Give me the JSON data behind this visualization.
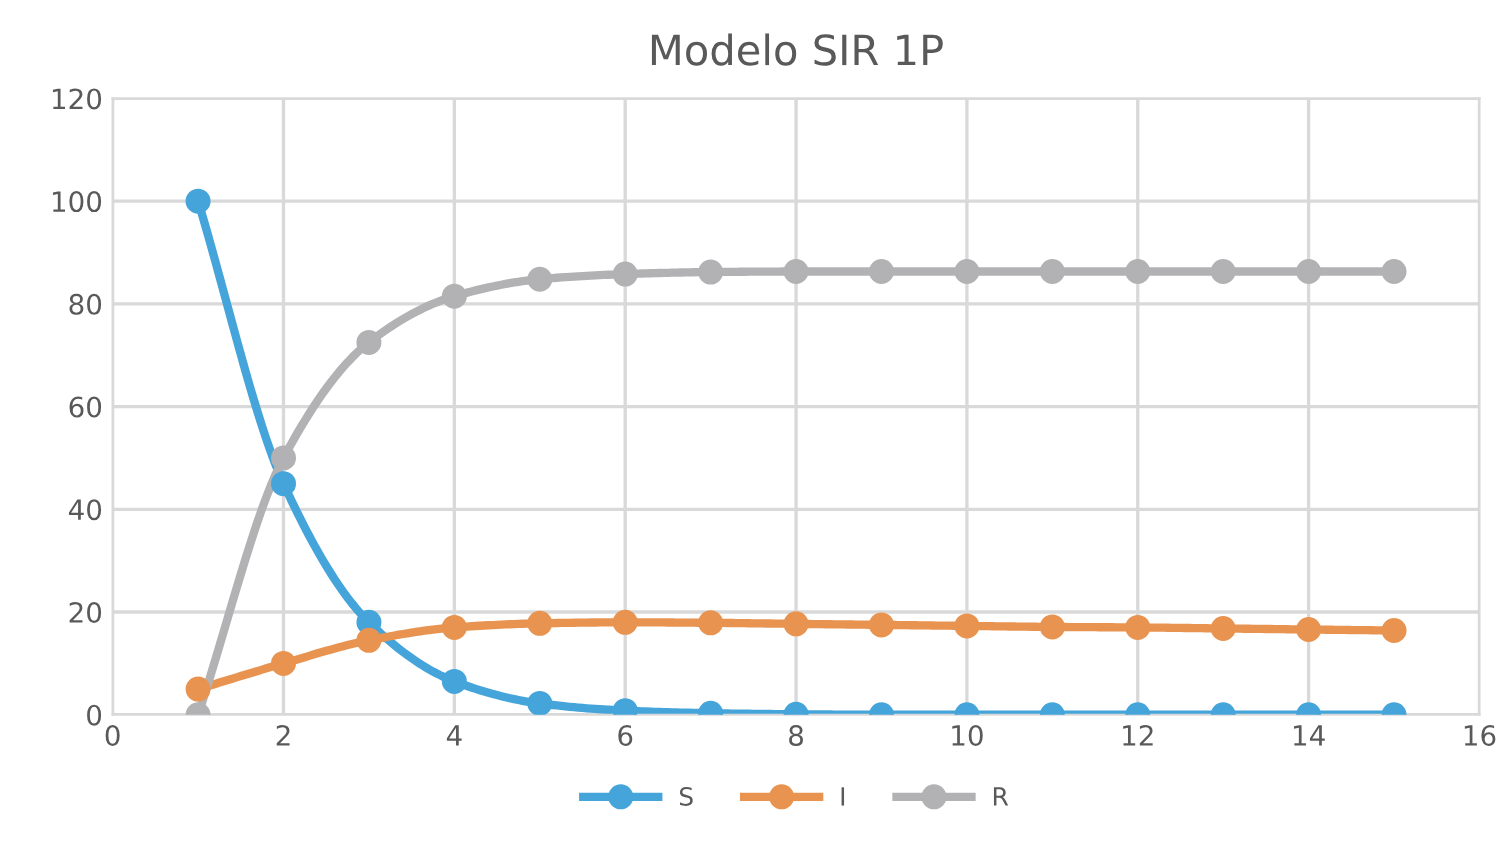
{
  "chart_data": {
    "type": "line",
    "title": "Modelo SIR 1P",
    "x": [
      1,
      2,
      3,
      4,
      5,
      6,
      7,
      8,
      9,
      10,
      11,
      12,
      13,
      14,
      15
    ],
    "series": [
      {
        "name": "S",
        "color": "#45a5da",
        "values": [
          100,
          45,
          18,
          6.5,
          2.2,
          0.8,
          0.3,
          0.1,
          0,
          0,
          0,
          0,
          0,
          0,
          0
        ]
      },
      {
        "name": "I",
        "color": "#e89450",
        "values": [
          5,
          10,
          14.5,
          17,
          17.8,
          18,
          17.9,
          17.7,
          17.5,
          17.3,
          17.1,
          17,
          16.8,
          16.6,
          16.4
        ]
      },
      {
        "name": "R",
        "color": "#b2b2b4",
        "values": [
          0,
          50,
          72.5,
          81.5,
          84.8,
          85.8,
          86.2,
          86.3,
          86.3,
          86.3,
          86.3,
          86.3,
          86.3,
          86.3,
          86.3
        ]
      }
    ],
    "xlim": [
      0,
      16
    ],
    "xticks": [
      0,
      2,
      4,
      6,
      8,
      10,
      12,
      14,
      16
    ],
    "ylim": [
      0,
      120
    ],
    "yticks": [
      0,
      20,
      40,
      60,
      80,
      100,
      120
    ],
    "grid": true,
    "legend": "bottom",
    "marker": "circle",
    "line_style": "solid"
  }
}
